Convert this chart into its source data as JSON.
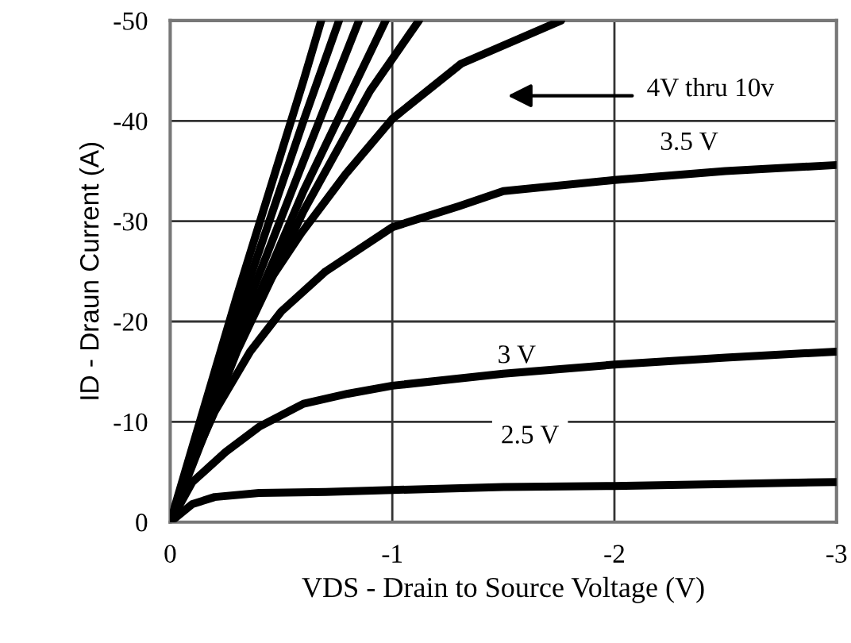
{
  "chart_data": {
    "type": "line",
    "xlabel": "VDS - Drain to Source Voltage (V)",
    "ylabel": "ID - Draun Current (A)",
    "xlim": [
      0,
      -3
    ],
    "ylim": [
      0,
      -50
    ],
    "xticks": [
      0,
      -1,
      -2,
      -3
    ],
    "yticks": [
      0,
      -10,
      -20,
      -30,
      -40,
      -50
    ],
    "grid": true,
    "line_style": "solid",
    "marker": "none",
    "series": [
      {
        "color": "#000000",
        "x": [
          0,
          -0.1,
          -0.2,
          -0.4,
          -0.7,
          -1.0,
          -1.5,
          -2,
          -2.5,
          -3
        ],
        "values": [
          0,
          -1.8,
          -2.5,
          -2.9,
          -3.0,
          -3.2,
          -3.5,
          -3.6,
          -3.8,
          -4.0
        ]
      },
      {
        "color": "#000000",
        "x": [
          0,
          -0.1,
          -0.25,
          -0.4,
          -0.6,
          -0.8,
          -1,
          -1.5,
          -2,
          -2.5,
          -3
        ],
        "values": [
          0,
          -4,
          -7,
          -9.5,
          -11.8,
          -12.8,
          -13.6,
          -14.8,
          -15.7,
          -16.4,
          -17.0
        ]
      },
      {
        "color": "#000000",
        "x": [
          0,
          -0.1,
          -0.2,
          -0.36,
          -0.5,
          -0.7,
          -1,
          -1.3,
          -1.5,
          -2,
          -2.5,
          -3
        ],
        "values": [
          0,
          -6,
          -11,
          -17,
          -21,
          -25,
          -29.4,
          -31.5,
          -33,
          -34.1,
          -35,
          -35.6
        ]
      },
      {
        "color": "#000000",
        "x": [
          0,
          -0.24,
          -0.4,
          -0.59,
          -0.79,
          -1.0,
          -1.31,
          -1.76
        ],
        "values": [
          0,
          -15.2,
          -22.5,
          -28.8,
          -34.7,
          -40.2,
          -45.7,
          -50
        ]
      },
      {
        "color": "#000000",
        "x": [
          0,
          -0.3,
          -0.6,
          -0.9,
          -1.12
        ],
        "values": [
          0,
          -17,
          -31,
          -43,
          -50
        ]
      },
      {
        "color": "#000000",
        "x": [
          0,
          -0.3,
          -0.6,
          -0.97
        ],
        "values": [
          0,
          -17.5,
          -33,
          -50
        ]
      },
      {
        "color": "#000000",
        "x": [
          0,
          -0.3,
          -0.6,
          -0.85
        ],
        "values": [
          0,
          -19,
          -36,
          -50
        ]
      },
      {
        "color": "#000000",
        "x": [
          0,
          -0.3,
          -0.6,
          -0.76
        ],
        "values": [
          0,
          -20.5,
          -40,
          -50
        ]
      },
      {
        "color": "#000000",
        "x": [
          0,
          -0.3,
          -0.6,
          -0.68
        ],
        "values": [
          0,
          -22.5,
          -44,
          -50
        ]
      }
    ],
    "annotations": [
      "4V thru 10v",
      "3.5 V",
      "3 V",
      "2.5 V"
    ]
  }
}
